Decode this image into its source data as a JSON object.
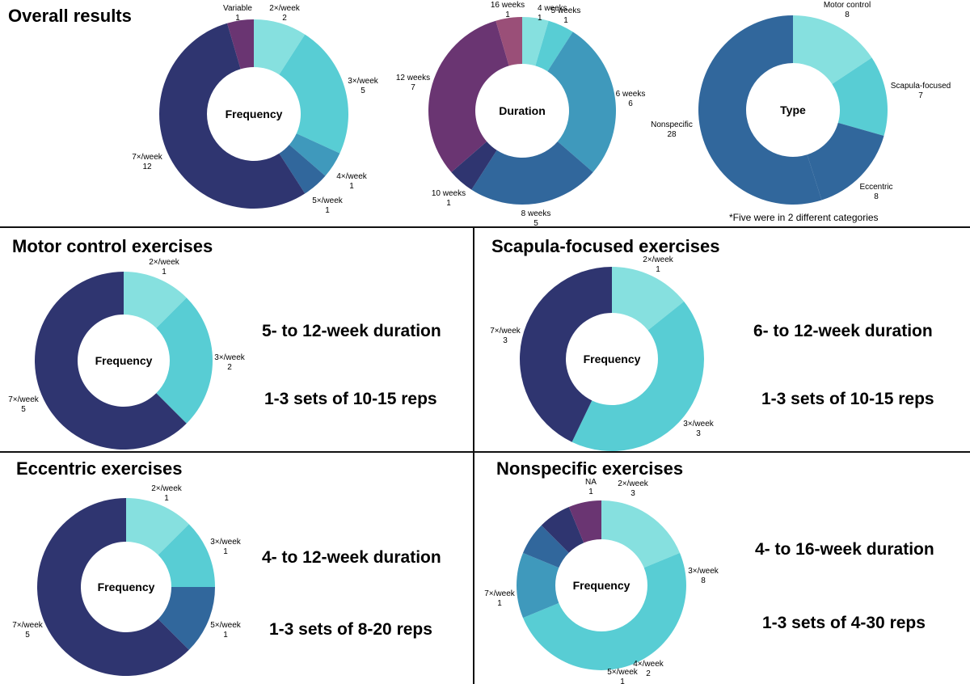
{
  "colors": {
    "c1": "#86E0DF",
    "c2": "#58CDD4",
    "c3": "#3F99BC",
    "c4": "#31679C",
    "c5": "#2F3570",
    "c6": "#6A3572",
    "c7": "#9A4F78"
  },
  "overall": {
    "title": "Overall results",
    "note": "*Five were in 2 different categories"
  },
  "sections": {
    "motor": {
      "title": "Motor control exercises",
      "duration": "5- to 12-week duration",
      "sets": "1-3 sets of 10-15 reps"
    },
    "scapula": {
      "title": "Scapula-focused exercises",
      "duration": "6- to 12-week duration",
      "sets": "1-3 sets of 10-15 reps"
    },
    "eccentric": {
      "title": "Eccentric exercises",
      "duration": "4- to 12-week duration",
      "sets": "1-3 sets of 8-20 reps"
    },
    "nonspecific": {
      "title": "Nonspecific exercises",
      "duration": "4- to 16-week duration",
      "sets": "1-3 sets of 4-30 reps"
    }
  },
  "chart_data": [
    {
      "type": "pie",
      "name": "overall-frequency",
      "title": "Frequency",
      "slices": [
        {
          "label": "2×/week",
          "value": 2,
          "color": "c1"
        },
        {
          "label": "3×/week",
          "value": 5,
          "color": "c2"
        },
        {
          "label": "4×/week",
          "value": 1,
          "color": "c3"
        },
        {
          "label": "5×/week",
          "value": 1,
          "color": "c4"
        },
        {
          "label": "7×/week",
          "value": 12,
          "color": "c5"
        },
        {
          "label": "Variable",
          "value": 1,
          "color": "c6"
        }
      ]
    },
    {
      "type": "pie",
      "name": "overall-duration",
      "title": "Duration",
      "slices": [
        {
          "label": "4  weeks",
          "value": 1,
          "color": "c1"
        },
        {
          "label": "5 weeks",
          "value": 1,
          "color": "c2"
        },
        {
          "label": "6 weeks",
          "value": 6,
          "color": "c3"
        },
        {
          "label": "8 weeks",
          "value": 5,
          "color": "c4"
        },
        {
          "label": "10 weeks",
          "value": 1,
          "color": "c5"
        },
        {
          "label": "12 weeks",
          "value": 7,
          "color": "c6"
        },
        {
          "label": "16 weeks",
          "value": 1,
          "color": "c7"
        }
      ]
    },
    {
      "type": "pie",
      "name": "overall-type",
      "title": "Type",
      "slices": [
        {
          "label": "Motor control",
          "value": 8,
          "color": "c1"
        },
        {
          "label": "Scapula-focused",
          "value": 7,
          "color": "c2"
        },
        {
          "label": "Eccentric",
          "value": 8,
          "color": "c4"
        },
        {
          "label": "Nonspecific",
          "value": 28,
          "color": "c4"
        }
      ]
    },
    {
      "type": "pie",
      "name": "motor-frequency",
      "title": "Frequency",
      "slices": [
        {
          "label": "2×/week",
          "value": 1,
          "color": "c1"
        },
        {
          "label": "3×/week",
          "value": 2,
          "color": "c2"
        },
        {
          "label": "7×/week",
          "value": 5,
          "color": "c5"
        }
      ]
    },
    {
      "type": "pie",
      "name": "scapula-frequency",
      "title": "Frequency",
      "slices": [
        {
          "label": "2×/week",
          "value": 1,
          "color": "c1"
        },
        {
          "label": "3×/week",
          "value": 3,
          "color": "c2"
        },
        {
          "label": "7×/week",
          "value": 3,
          "color": "c5"
        }
      ]
    },
    {
      "type": "pie",
      "name": "eccentric-frequency",
      "title": "Frequency",
      "slices": [
        {
          "label": "2×/week",
          "value": 1,
          "color": "c1"
        },
        {
          "label": "3×/week",
          "value": 1,
          "color": "c2"
        },
        {
          "label": "5×/week",
          "value": 1,
          "color": "c4"
        },
        {
          "label": "7×/week",
          "value": 5,
          "color": "c5"
        }
      ]
    },
    {
      "type": "pie",
      "name": "nonspecific-frequency",
      "title": "Frequency",
      "slices": [
        {
          "label": "2×/week",
          "value": 3,
          "color": "c1"
        },
        {
          "label": "3×/week",
          "value": 8,
          "color": "c2"
        },
        {
          "label": "4×/week",
          "value": 2,
          "color": "c3"
        },
        {
          "label": "5×/week",
          "value": 1,
          "color": "c4"
        },
        {
          "label": "7×/week",
          "value": 1,
          "color": "c5"
        },
        {
          "label": "NA",
          "value": 1,
          "color": "c6"
        }
      ]
    }
  ]
}
